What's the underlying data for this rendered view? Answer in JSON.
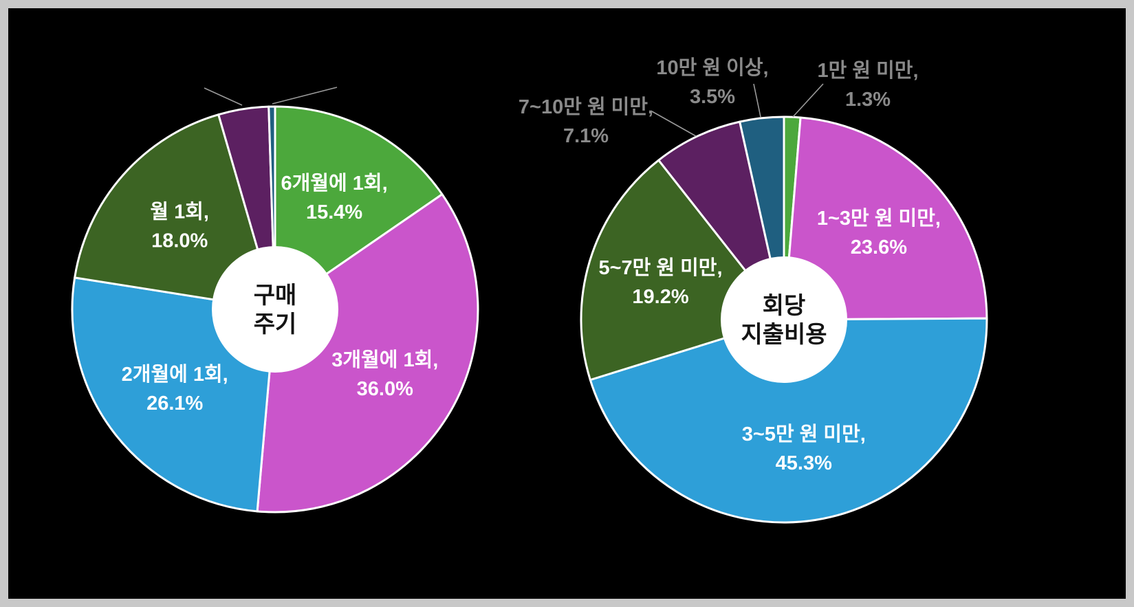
{
  "page": {
    "background_color": "#000000",
    "frame_border_color": "#c8c8c8"
  },
  "chart_data": [
    {
      "type": "pie",
      "donut": true,
      "title": "구매 주기",
      "center_label_lines": [
        "구매",
        "주기"
      ],
      "label_text_color": "#ffffff",
      "outside_label_color": "#8a8a8a",
      "legend": "none",
      "slices": [
        {
          "label": "6개월에 1회",
          "value": 15.4,
          "color": "#4ca83c",
          "label_mode": "inside"
        },
        {
          "label": "3개월에 1회",
          "value": 36.0,
          "color": "#ca55cb",
          "label_mode": "inside"
        },
        {
          "label": "2개월에 1회",
          "value": 26.1,
          "color": "#2e9fd8",
          "label_mode": "inside"
        },
        {
          "label": "월 1회",
          "value": 18.0,
          "color": "#3c6423",
          "label_mode": "inside"
        },
        {
          "label": "",
          "value": 4.0,
          "color": "#5c2061",
          "label_mode": "leader-only"
        },
        {
          "label": "",
          "value": 0.5,
          "color": "#1f5f80",
          "label_mode": "leader-only"
        }
      ]
    },
    {
      "type": "pie",
      "donut": true,
      "title": "회당 지출비용",
      "center_label_lines": [
        "회당",
        "지출비용"
      ],
      "label_text_color": "#ffffff",
      "outside_label_color": "#8a8a8a",
      "legend": "none",
      "slices": [
        {
          "label": "1만 원 미만",
          "value": 1.3,
          "color": "#4ca83c",
          "label_mode": "outside"
        },
        {
          "label": "1~3만 원 미만",
          "value": 23.6,
          "color": "#ca55cb",
          "label_mode": "inside"
        },
        {
          "label": "3~5만 원 미만",
          "value": 45.3,
          "color": "#2e9fd8",
          "label_mode": "inside"
        },
        {
          "label": "5~7만 원 미만",
          "value": 19.2,
          "color": "#3c6423",
          "label_mode": "inside"
        },
        {
          "label": "7~10만 원 미만",
          "value": 7.1,
          "color": "#5c2061",
          "label_mode": "outside"
        },
        {
          "label": "10만 원 이상",
          "value": 3.5,
          "color": "#1f5f80",
          "label_mode": "outside"
        }
      ]
    }
  ]
}
